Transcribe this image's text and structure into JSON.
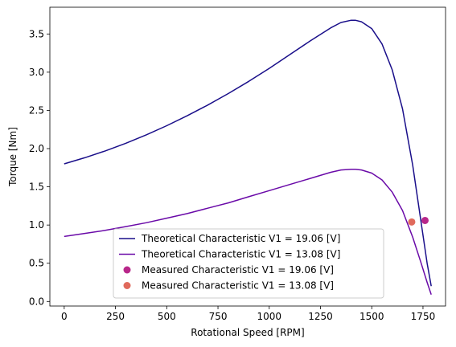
{
  "chart_data": {
    "type": "line",
    "xlabel": "Rotational Speed [RPM]",
    "ylabel": "Torque [Nm]",
    "xlim": [
      -70,
      1860
    ],
    "ylim": [
      -0.06,
      3.85
    ],
    "xticks": [
      0,
      250,
      500,
      750,
      1000,
      1250,
      1500,
      1750
    ],
    "yticks": [
      0.0,
      0.5,
      1.0,
      1.5,
      2.0,
      2.5,
      3.0,
      3.5
    ],
    "grid": false,
    "legend_position": "bottom-center",
    "series": [
      {
        "name": "Theoretical Characteristic V1 = 19.06 [V]",
        "kind": "line",
        "color": "#1a0f8a",
        "x": [
          0,
          100,
          200,
          300,
          400,
          500,
          600,
          700,
          800,
          900,
          1000,
          1100,
          1200,
          1300,
          1350,
          1400,
          1420,
          1450,
          1500,
          1550,
          1600,
          1650,
          1700,
          1740,
          1770,
          1790
        ],
        "y": [
          1.8,
          1.88,
          1.97,
          2.07,
          2.18,
          2.3,
          2.43,
          2.57,
          2.72,
          2.88,
          3.05,
          3.23,
          3.41,
          3.58,
          3.65,
          3.68,
          3.68,
          3.66,
          3.57,
          3.37,
          3.03,
          2.52,
          1.78,
          1.05,
          0.5,
          0.2
        ]
      },
      {
        "name": "Theoretical Characteristic V1 = 13.08 [V]",
        "kind": "line",
        "color": "#6a0aa8",
        "x": [
          0,
          100,
          200,
          300,
          400,
          500,
          600,
          700,
          800,
          900,
          1000,
          1100,
          1200,
          1300,
          1350,
          1400,
          1420,
          1450,
          1500,
          1550,
          1600,
          1650,
          1700,
          1740,
          1770,
          1790
        ],
        "y": [
          0.85,
          0.89,
          0.93,
          0.98,
          1.03,
          1.09,
          1.15,
          1.22,
          1.29,
          1.37,
          1.45,
          1.53,
          1.61,
          1.69,
          1.72,
          1.73,
          1.73,
          1.72,
          1.68,
          1.59,
          1.43,
          1.19,
          0.84,
          0.51,
          0.25,
          0.09
        ]
      },
      {
        "name": "Measured Characteristic V1 = 19.06 [V]",
        "kind": "scatter",
        "color": "#b8278a",
        "x": [
          1760
        ],
        "y": [
          1.06
        ]
      },
      {
        "name": "Measured Characteristic V1 = 13.08 [V]",
        "kind": "scatter",
        "color": "#e06a5c",
        "x": [
          1695
        ],
        "y": [
          1.04
        ]
      }
    ]
  }
}
